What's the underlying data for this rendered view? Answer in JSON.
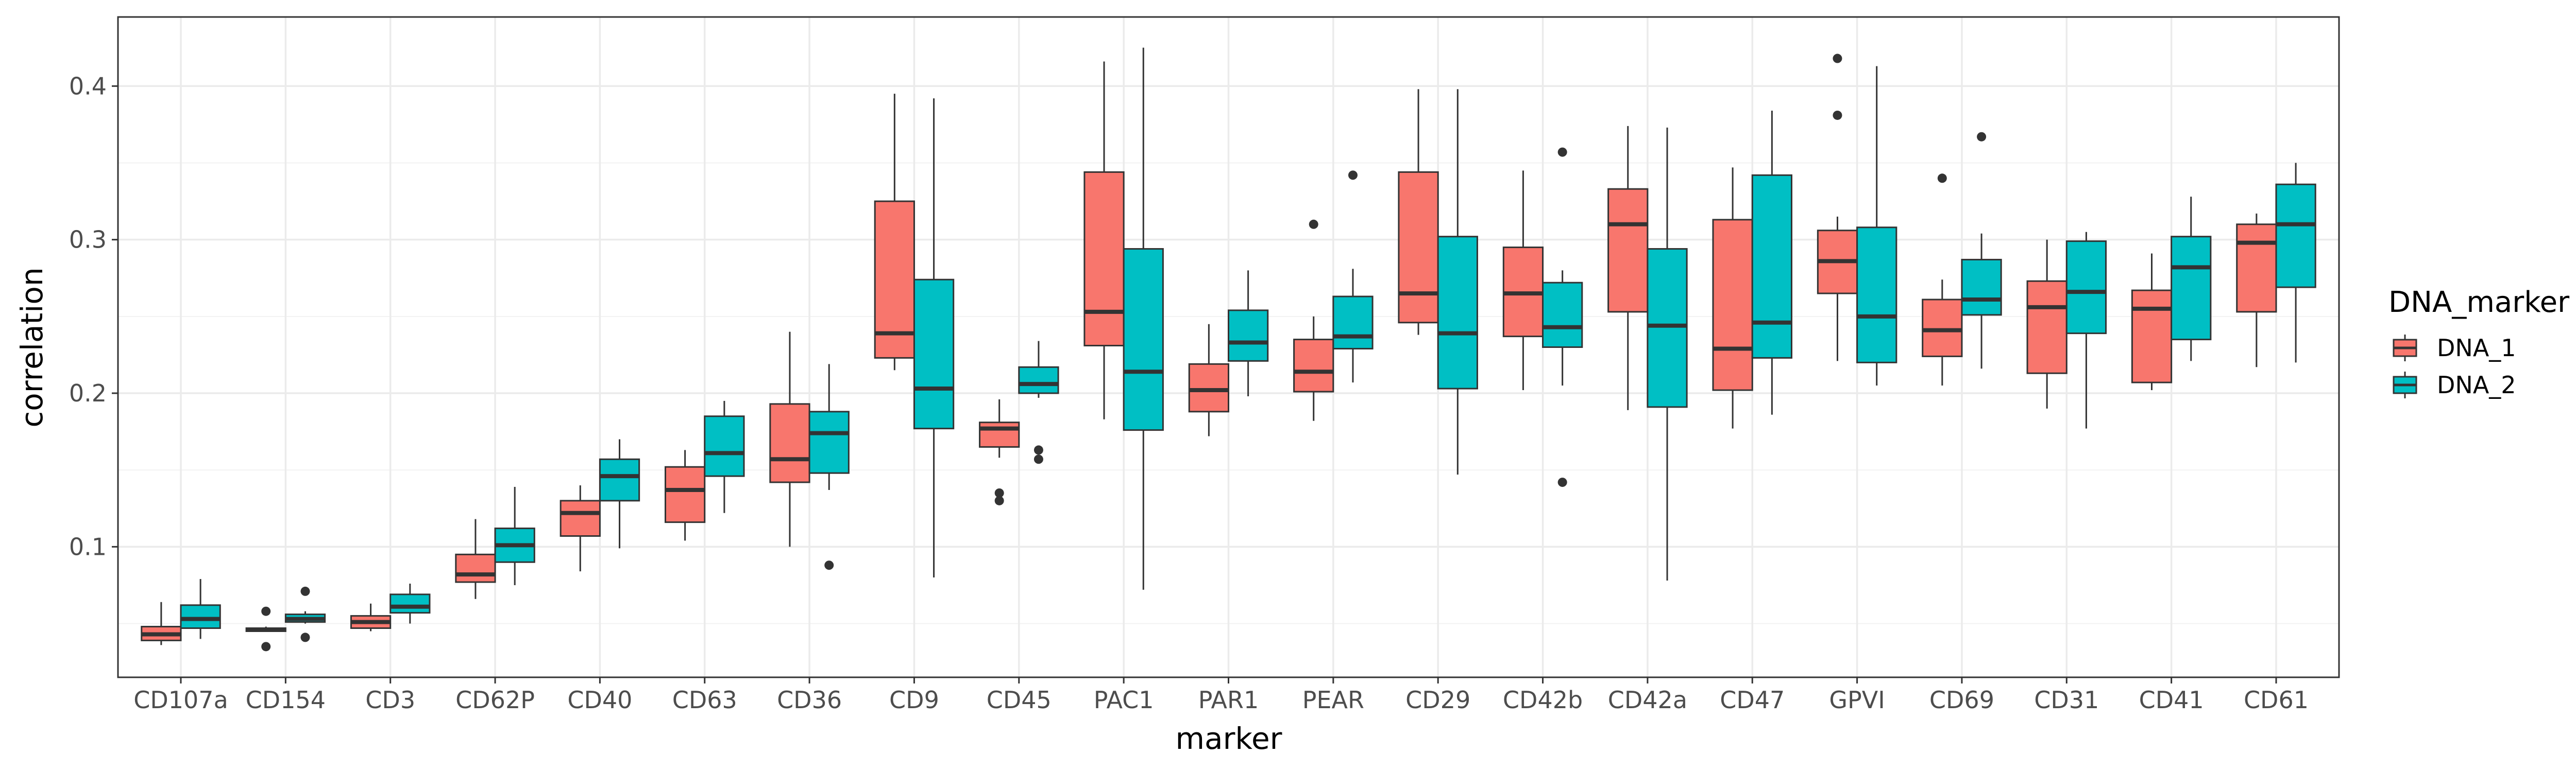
{
  "chart_data": {
    "type": "boxplot",
    "xlabel": "marker",
    "ylabel": "correlation",
    "yticks": [
      0.1,
      0.2,
      0.3,
      0.4
    ],
    "ylim": [
      0.015,
      0.445
    ],
    "grid": true,
    "legend": {
      "title": "DNA_marker",
      "position": "right",
      "entries": [
        {
          "name": "DNA_1",
          "color": "#F8766D"
        },
        {
          "name": "DNA_2",
          "color": "#00BFC4"
        }
      ]
    },
    "categories": [
      "CD107a",
      "CD154",
      "CD3",
      "CD62P",
      "CD40",
      "CD63",
      "CD36",
      "CD9",
      "CD45",
      "PAC1",
      "PAR1",
      "PEAR",
      "CD29",
      "CD42b",
      "CD42a",
      "CD47",
      "GPVI",
      "CD69",
      "CD31",
      "CD41",
      "CD61"
    ],
    "series": [
      {
        "name": "DNA_1",
        "color": "#F8766D",
        "boxes": [
          {
            "whisker_low": 0.036,
            "q1": 0.039,
            "median": 0.043,
            "q3": 0.048,
            "whisker_high": 0.064,
            "outliers": []
          },
          {
            "whisker_low": 0.045,
            "q1": 0.045,
            "median": 0.046,
            "q3": 0.047,
            "whisker_high": 0.048,
            "outliers": [
              0.058,
              0.035
            ]
          },
          {
            "whisker_low": 0.045,
            "q1": 0.047,
            "median": 0.051,
            "q3": 0.055,
            "whisker_high": 0.063,
            "outliers": []
          },
          {
            "whisker_low": 0.066,
            "q1": 0.077,
            "median": 0.082,
            "q3": 0.095,
            "whisker_high": 0.118,
            "outliers": []
          },
          {
            "whisker_low": 0.084,
            "q1": 0.107,
            "median": 0.122,
            "q3": 0.13,
            "whisker_high": 0.14,
            "outliers": []
          },
          {
            "whisker_low": 0.104,
            "q1": 0.116,
            "median": 0.137,
            "q3": 0.152,
            "whisker_high": 0.163,
            "outliers": []
          },
          {
            "whisker_low": 0.1,
            "q1": 0.142,
            "median": 0.157,
            "q3": 0.193,
            "whisker_high": 0.24,
            "outliers": []
          },
          {
            "whisker_low": 0.215,
            "q1": 0.223,
            "median": 0.239,
            "q3": 0.325,
            "whisker_high": 0.395,
            "outliers": []
          },
          {
            "whisker_low": 0.158,
            "q1": 0.165,
            "median": 0.177,
            "q3": 0.181,
            "whisker_high": 0.196,
            "outliers": [
              0.135,
              0.13
            ]
          },
          {
            "whisker_low": 0.183,
            "q1": 0.231,
            "median": 0.253,
            "q3": 0.344,
            "whisker_high": 0.416,
            "outliers": []
          },
          {
            "whisker_low": 0.172,
            "q1": 0.188,
            "median": 0.202,
            "q3": 0.219,
            "whisker_high": 0.245,
            "outliers": []
          },
          {
            "whisker_low": 0.182,
            "q1": 0.201,
            "median": 0.214,
            "q3": 0.235,
            "whisker_high": 0.25,
            "outliers": [
              0.31
            ]
          },
          {
            "whisker_low": 0.238,
            "q1": 0.246,
            "median": 0.265,
            "q3": 0.344,
            "whisker_high": 0.398,
            "outliers": []
          },
          {
            "whisker_low": 0.202,
            "q1": 0.237,
            "median": 0.265,
            "q3": 0.295,
            "whisker_high": 0.345,
            "outliers": []
          },
          {
            "whisker_low": 0.189,
            "q1": 0.253,
            "median": 0.31,
            "q3": 0.333,
            "whisker_high": 0.374,
            "outliers": []
          },
          {
            "whisker_low": 0.177,
            "q1": 0.202,
            "median": 0.229,
            "q3": 0.313,
            "whisker_high": 0.347,
            "outliers": []
          },
          {
            "whisker_low": 0.221,
            "q1": 0.265,
            "median": 0.286,
            "q3": 0.306,
            "whisker_high": 0.315,
            "outliers": [
              0.418,
              0.381
            ]
          },
          {
            "whisker_low": 0.205,
            "q1": 0.224,
            "median": 0.241,
            "q3": 0.261,
            "whisker_high": 0.274,
            "outliers": [
              0.34
            ]
          },
          {
            "whisker_low": 0.19,
            "q1": 0.213,
            "median": 0.256,
            "q3": 0.273,
            "whisker_high": 0.3,
            "outliers": []
          },
          {
            "whisker_low": 0.202,
            "q1": 0.207,
            "median": 0.255,
            "q3": 0.267,
            "whisker_high": 0.291,
            "outliers": []
          },
          {
            "whisker_low": 0.217,
            "q1": 0.253,
            "median": 0.298,
            "q3": 0.31,
            "whisker_high": 0.317,
            "outliers": []
          }
        ]
      },
      {
        "name": "DNA_2",
        "color": "#00BFC4",
        "boxes": [
          {
            "whisker_low": 0.04,
            "q1": 0.047,
            "median": 0.053,
            "q3": 0.062,
            "whisker_high": 0.079,
            "outliers": []
          },
          {
            "whisker_low": 0.05,
            "q1": 0.051,
            "median": 0.053,
            "q3": 0.056,
            "whisker_high": 0.058,
            "outliers": [
              0.071,
              0.041
            ]
          },
          {
            "whisker_low": 0.05,
            "q1": 0.057,
            "median": 0.061,
            "q3": 0.069,
            "whisker_high": 0.076,
            "outliers": []
          },
          {
            "whisker_low": 0.075,
            "q1": 0.09,
            "median": 0.101,
            "q3": 0.112,
            "whisker_high": 0.139,
            "outliers": []
          },
          {
            "whisker_low": 0.099,
            "q1": 0.13,
            "median": 0.146,
            "q3": 0.157,
            "whisker_high": 0.17,
            "outliers": []
          },
          {
            "whisker_low": 0.122,
            "q1": 0.146,
            "median": 0.161,
            "q3": 0.185,
            "whisker_high": 0.195,
            "outliers": []
          },
          {
            "whisker_low": 0.137,
            "q1": 0.148,
            "median": 0.174,
            "q3": 0.188,
            "whisker_high": 0.219,
            "outliers": [
              0.088
            ]
          },
          {
            "whisker_low": 0.08,
            "q1": 0.177,
            "median": 0.203,
            "q3": 0.274,
            "whisker_high": 0.392,
            "outliers": []
          },
          {
            "whisker_low": 0.197,
            "q1": 0.2,
            "median": 0.206,
            "q3": 0.217,
            "whisker_high": 0.234,
            "outliers": [
              0.163,
              0.157
            ]
          },
          {
            "whisker_low": 0.072,
            "q1": 0.176,
            "median": 0.214,
            "q3": 0.294,
            "whisker_high": 0.425,
            "outliers": []
          },
          {
            "whisker_low": 0.198,
            "q1": 0.221,
            "median": 0.233,
            "q3": 0.254,
            "whisker_high": 0.28,
            "outliers": []
          },
          {
            "whisker_low": 0.207,
            "q1": 0.229,
            "median": 0.237,
            "q3": 0.263,
            "whisker_high": 0.281,
            "outliers": [
              0.342
            ]
          },
          {
            "whisker_low": 0.147,
            "q1": 0.203,
            "median": 0.239,
            "q3": 0.302,
            "whisker_high": 0.398,
            "outliers": []
          },
          {
            "whisker_low": 0.205,
            "q1": 0.23,
            "median": 0.243,
            "q3": 0.272,
            "whisker_high": 0.28,
            "outliers": [
              0.357,
              0.142
            ]
          },
          {
            "whisker_low": 0.078,
            "q1": 0.191,
            "median": 0.244,
            "q3": 0.294,
            "whisker_high": 0.373,
            "outliers": []
          },
          {
            "whisker_low": 0.186,
            "q1": 0.223,
            "median": 0.246,
            "q3": 0.342,
            "whisker_high": 0.384,
            "outliers": []
          },
          {
            "whisker_low": 0.205,
            "q1": 0.22,
            "median": 0.25,
            "q3": 0.308,
            "whisker_high": 0.413,
            "outliers": []
          },
          {
            "whisker_low": 0.216,
            "q1": 0.251,
            "median": 0.261,
            "q3": 0.287,
            "whisker_high": 0.304,
            "outliers": [
              0.367
            ]
          },
          {
            "whisker_low": 0.177,
            "q1": 0.239,
            "median": 0.266,
            "q3": 0.299,
            "whisker_high": 0.305,
            "outliers": []
          },
          {
            "whisker_low": 0.221,
            "q1": 0.235,
            "median": 0.282,
            "q3": 0.302,
            "whisker_high": 0.328,
            "outliers": []
          },
          {
            "whisker_low": 0.22,
            "q1": 0.269,
            "median": 0.31,
            "q3": 0.336,
            "whisker_high": 0.35,
            "outliers": []
          }
        ]
      }
    ]
  }
}
